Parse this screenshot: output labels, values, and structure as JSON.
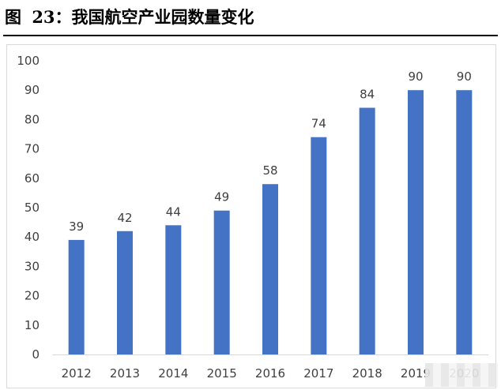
{
  "figure": {
    "number_label": "图",
    "title_text": "23：我国航空产业园数量变化"
  },
  "chart_data": {
    "type": "bar",
    "title": "",
    "xlabel": "",
    "ylabel": "",
    "categories": [
      "2012",
      "2013",
      "2014",
      "2015",
      "2016",
      "2017",
      "2018",
      "2019",
      "2020"
    ],
    "values": [
      39,
      42,
      44,
      49,
      58,
      74,
      84,
      90,
      90
    ],
    "ylim": [
      0,
      100
    ],
    "yticks": [
      0,
      10,
      20,
      30,
      40,
      50,
      60,
      70,
      80,
      90,
      100
    ],
    "data_labels": true,
    "grid": false,
    "legend": "none",
    "bar_color": "#4472C4"
  }
}
